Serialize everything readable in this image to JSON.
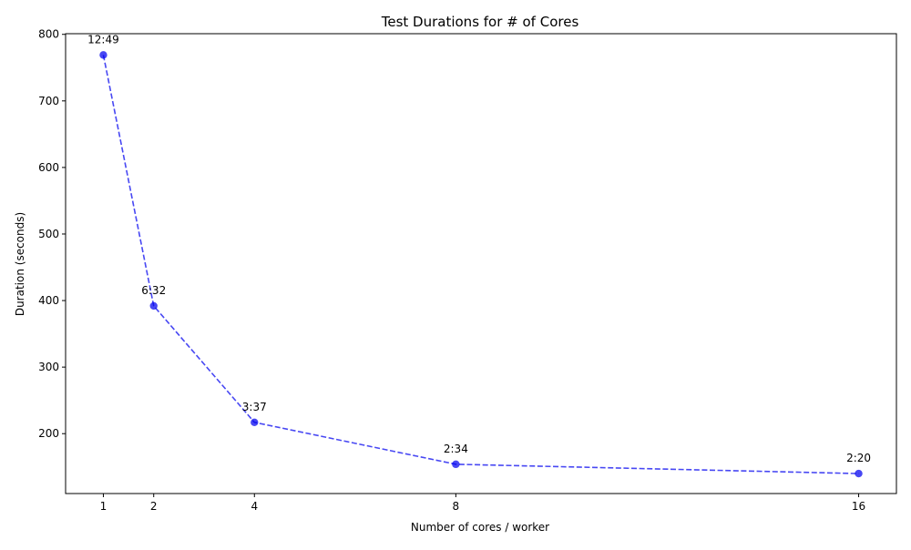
{
  "chart_data": {
    "type": "line",
    "title": "Test Durations for # of Cores",
    "xlabel": "Number of cores / worker",
    "ylabel": "Duration (seconds)",
    "x": [
      1,
      2,
      4,
      8,
      16
    ],
    "x_ticks": [
      1,
      2,
      4,
      8,
      16
    ],
    "xlim": [
      0.25,
      16.75
    ],
    "ylim": [
      110,
      801
    ],
    "y_ticks": [
      200,
      300,
      400,
      500,
      600,
      700,
      800
    ],
    "grid": false,
    "series": [
      {
        "values": [
          769,
          392,
          217,
          154,
          140
        ],
        "data_labels": [
          "12:49",
          "6:32",
          "3:37",
          "2:34",
          "2:20"
        ],
        "color": "#0000ee",
        "line_style": "dashed",
        "marker": "circle"
      }
    ]
  }
}
